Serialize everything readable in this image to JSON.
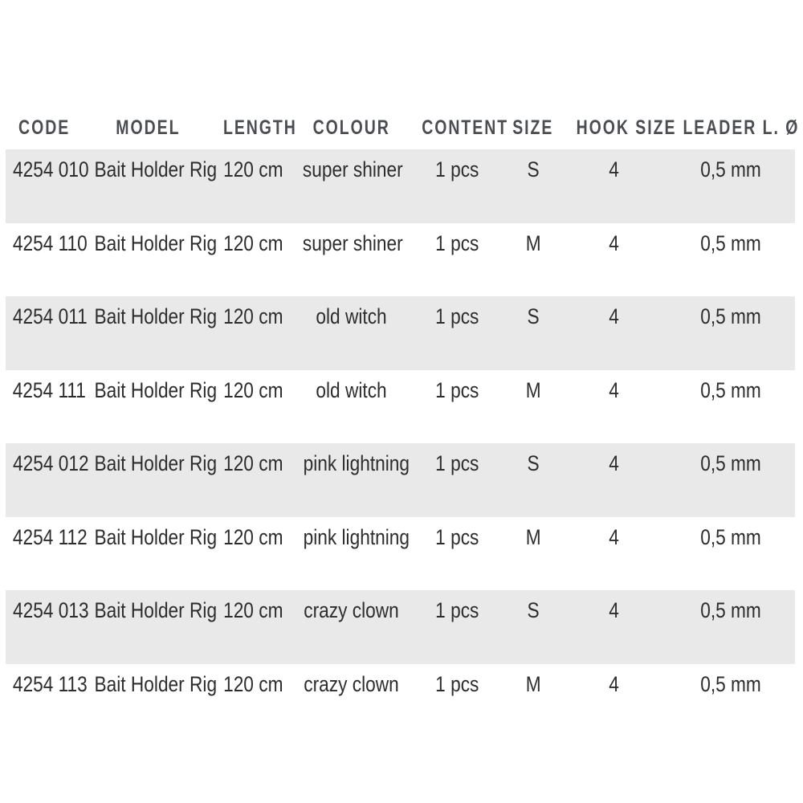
{
  "table": {
    "columns": [
      {
        "key": "code",
        "label": "CODE"
      },
      {
        "key": "model",
        "label": "MODEL"
      },
      {
        "key": "length",
        "label": "LENGTH"
      },
      {
        "key": "colour",
        "label": "COLOUR"
      },
      {
        "key": "content",
        "label": "CONTENT"
      },
      {
        "key": "size",
        "label": "SIZE"
      },
      {
        "key": "hook_size",
        "label": "HOOK SIZE"
      },
      {
        "key": "leader",
        "label": "LEADER L. Ø"
      }
    ],
    "rows": [
      {
        "code": "4254 010",
        "model": "Bait Holder Rig",
        "length": "120 cm",
        "colour": "super shiner",
        "content": "1 pcs",
        "size": "S",
        "hook_size": "4",
        "leader": "0,5 mm"
      },
      {
        "code": "4254 110",
        "model": "Bait Holder Rig",
        "length": "120 cm",
        "colour": "super shiner",
        "content": "1 pcs",
        "size": "M",
        "hook_size": "4",
        "leader": "0,5 mm"
      },
      {
        "code": "4254 011",
        "model": "Bait Holder Rig",
        "length": "120 cm",
        "colour": "old witch",
        "content": "1 pcs",
        "size": "S",
        "hook_size": "4",
        "leader": "0,5 mm"
      },
      {
        "code": "4254 111",
        "model": "Bait Holder Rig",
        "length": "120 cm",
        "colour": "old witch",
        "content": "1 pcs",
        "size": "M",
        "hook_size": "4",
        "leader": "0,5 mm"
      },
      {
        "code": "4254 012",
        "model": "Bait Holder Rig",
        "length": "120 cm",
        "colour": "pink lightning",
        "content": "1 pcs",
        "size": "S",
        "hook_size": "4",
        "leader": "0,5 mm"
      },
      {
        "code": "4254 112",
        "model": "Bait Holder Rig",
        "length": "120 cm",
        "colour": "pink lightning",
        "content": "1 pcs",
        "size": "M",
        "hook_size": "4",
        "leader": "0,5 mm"
      },
      {
        "code": "4254 013",
        "model": "Bait Holder Rig",
        "length": "120 cm",
        "colour": "crazy clown",
        "content": "1 pcs",
        "size": "S",
        "hook_size": "4",
        "leader": "0,5 mm"
      },
      {
        "code": "4254 113",
        "model": "Bait Holder Rig",
        "length": "120 cm",
        "colour": "crazy clown",
        "content": "1 pcs",
        "size": "M",
        "hook_size": "4",
        "leader": "0,5 mm"
      }
    ]
  },
  "colors": {
    "background": "#ffffff",
    "row_shade": "#e9e9e9",
    "body_text": "#2d2d2d",
    "header_text": "#4a4d52"
  }
}
